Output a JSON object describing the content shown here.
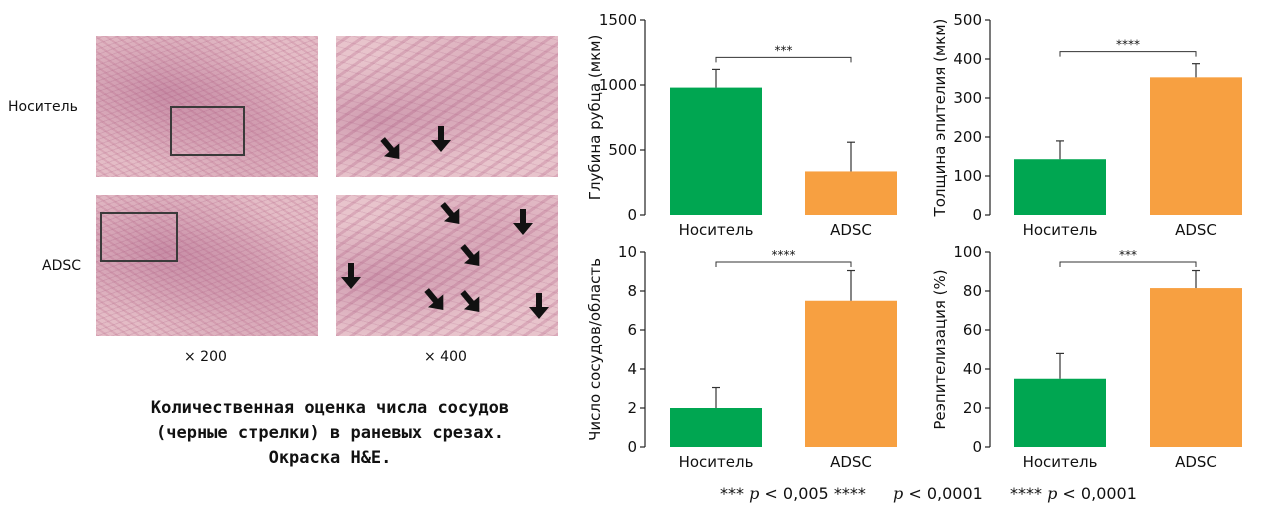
{
  "figure": {
    "row_labels": [
      "Носитель",
      "ADSC"
    ],
    "magnifications": [
      "× 200",
      "× 400"
    ],
    "caption_lines": [
      "Количественная оценка числа сосудов",
      "(черные стрелки) в раневых срезах.",
      "Окраска H&E."
    ],
    "footnote": {
      "part1": "*** ",
      "p1": "p",
      "part2": " < 0,005 ****",
      "p2": "p",
      "part3": " < 0,0001",
      "part4": "**** ",
      "p3": "p",
      "part5": " < 0,0001"
    },
    "colors": {
      "vehicle": "#00a651",
      "adsc": "#f7a041"
    },
    "arrow_icon": "down-arrow-icon"
  },
  "chart_data": [
    {
      "type": "bar",
      "categories": [
        "Носитель",
        "ADSC"
      ],
      "values": [
        980,
        335
      ],
      "errors": [
        140,
        225
      ],
      "ylabel": "Глубина рубца (мкм)",
      "ylim": [
        0,
        1500
      ],
      "yticks": [
        0,
        500,
        1000,
        1500
      ],
      "significance": "***"
    },
    {
      "type": "bar",
      "categories": [
        "Носитель",
        "ADSC"
      ],
      "values": [
        143,
        353
      ],
      "errors": [
        47,
        35
      ],
      "ylabel": "Толщина эпителия (мкм)",
      "ylim": [
        0,
        500
      ],
      "yticks": [
        0,
        100,
        200,
        300,
        400,
        500
      ],
      "significance": "****"
    },
    {
      "type": "bar",
      "categories": [
        "Носитель",
        "ADSC"
      ],
      "values": [
        2,
        7.5
      ],
      "errors": [
        1.05,
        1.55
      ],
      "ylabel": "Число сосудов/область",
      "ylim": [
        0,
        10
      ],
      "yticks": [
        0,
        2,
        4,
        6,
        8,
        10
      ],
      "significance": "****"
    },
    {
      "type": "bar",
      "categories": [
        "Носитель",
        "ADSC"
      ],
      "values": [
        35,
        81.5
      ],
      "errors": [
        13,
        9
      ],
      "ylabel": "Реэпителизация (%)",
      "ylim": [
        0,
        100
      ],
      "yticks": [
        0,
        20,
        40,
        60,
        80,
        100
      ],
      "significance": "***"
    }
  ]
}
